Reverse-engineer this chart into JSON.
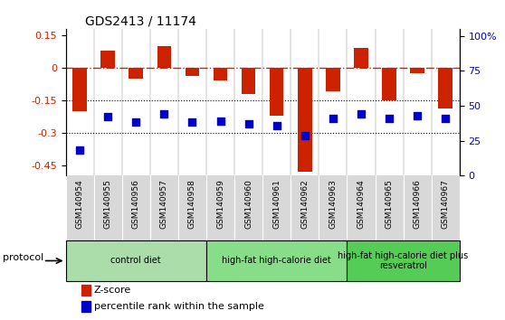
{
  "title": "GDS2413 / 11174",
  "samples": [
    "GSM140954",
    "GSM140955",
    "GSM140956",
    "GSM140957",
    "GSM140958",
    "GSM140959",
    "GSM140960",
    "GSM140961",
    "GSM140962",
    "GSM140963",
    "GSM140964",
    "GSM140965",
    "GSM140966",
    "GSM140967"
  ],
  "zscore": [
    -0.2,
    0.08,
    -0.05,
    0.1,
    -0.04,
    -0.06,
    -0.12,
    -0.22,
    -0.48,
    -0.11,
    0.09,
    -0.15,
    -0.025,
    -0.19
  ],
  "percentile": [
    18.5,
    42.5,
    38.5,
    44.0,
    38.5,
    39.0,
    37.0,
    36.0,
    29.0,
    41.0,
    44.0,
    41.0,
    43.0,
    41.0
  ],
  "ylim_left": [
    -0.5,
    0.18
  ],
  "ylim_right": [
    0,
    105
  ],
  "yticks_left": [
    -0.45,
    -0.3,
    -0.15,
    0.0,
    0.15
  ],
  "yticks_right": [
    0,
    25,
    50,
    75,
    100
  ],
  "ytick_labels_left": [
    "-0.45",
    "-0.3",
    "-0.15",
    "0",
    "0.15"
  ],
  "ytick_labels_right": [
    "0",
    "25",
    "50",
    "75",
    "100%"
  ],
  "hlines": [
    -0.15,
    -0.3
  ],
  "bar_color": "#cc2200",
  "dot_color": "#0000cc",
  "zero_line_color": "#cc2200",
  "hline_color": "#000000",
  "groups": [
    {
      "label": "control diet",
      "start": 0,
      "end": 5,
      "color": "#aaddaa"
    },
    {
      "label": "high-fat high-calorie diet",
      "start": 5,
      "end": 10,
      "color": "#88dd88"
    },
    {
      "label": "high-fat high-calorie diet plus\nresveratrol",
      "start": 10,
      "end": 14,
      "color": "#55cc55"
    }
  ],
  "protocol_label": "protocol",
  "legend_zscore": "Z-score",
  "legend_percentile": "percentile rank within the sample",
  "bar_width": 0.5,
  "dot_size": 35
}
